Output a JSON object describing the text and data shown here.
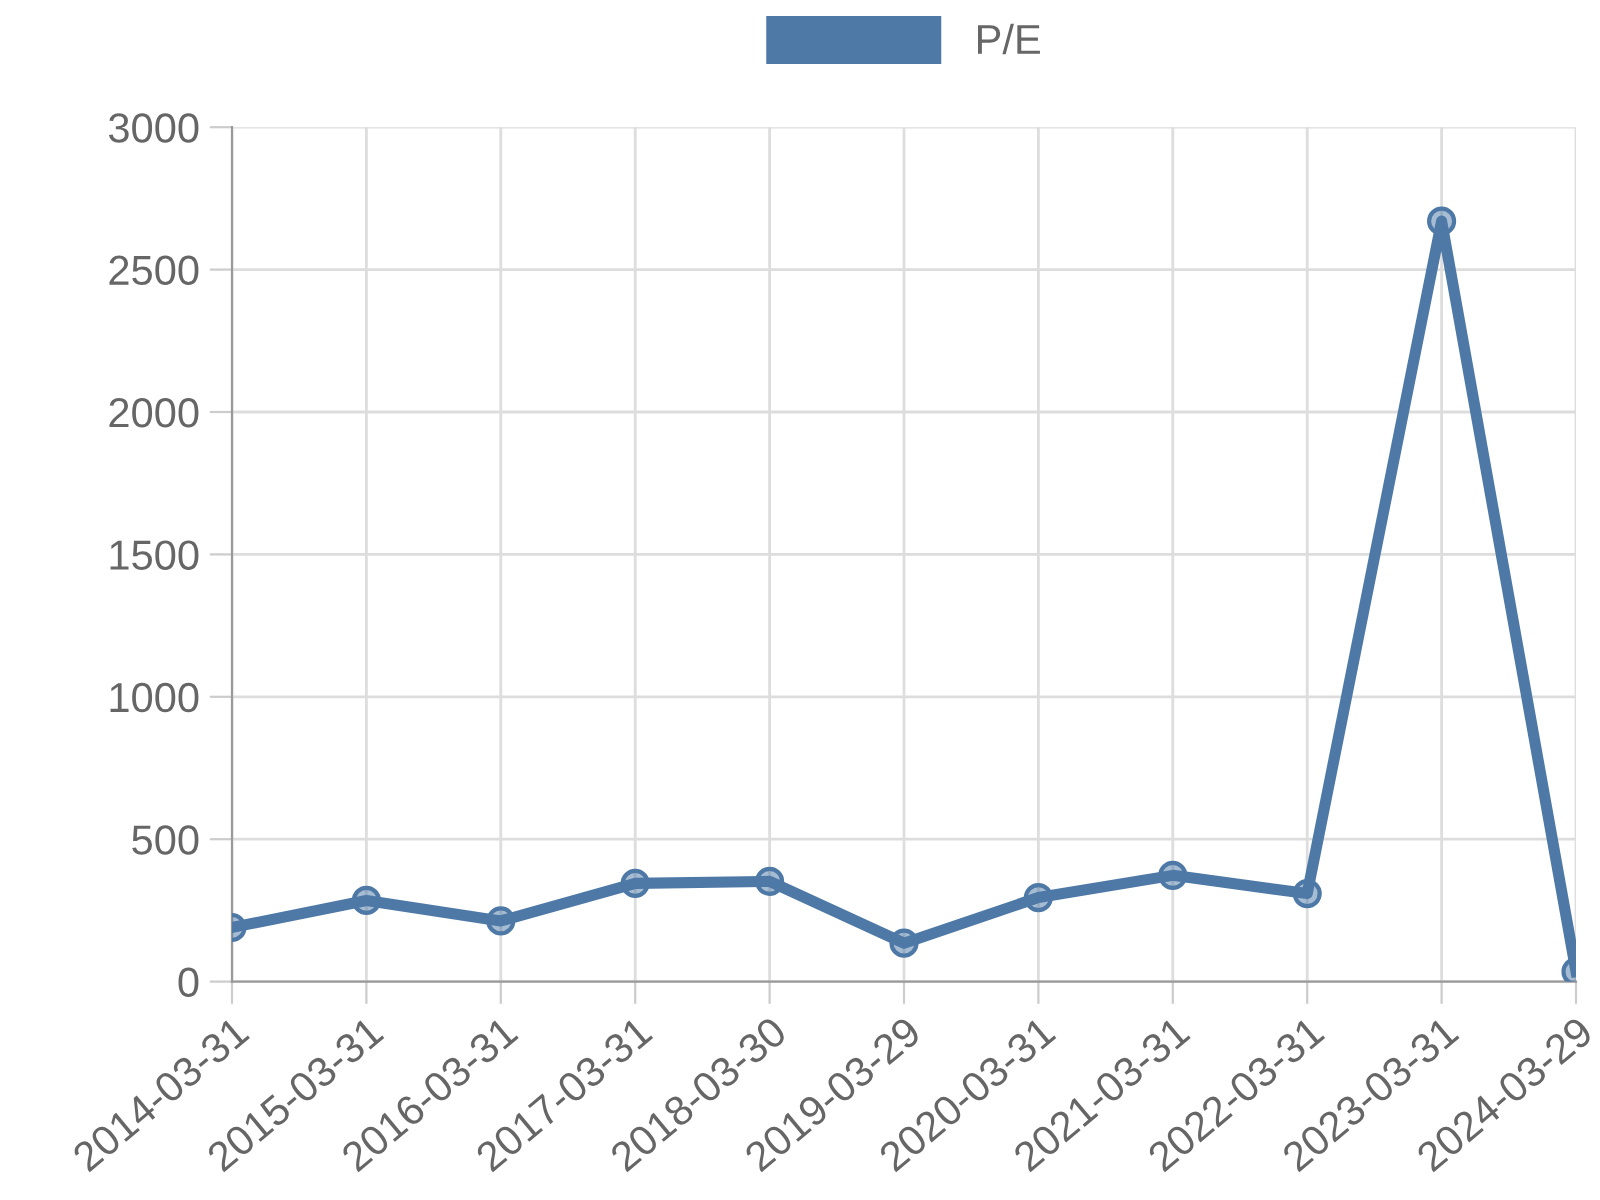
{
  "chart_data": {
    "type": "line",
    "categories": [
      "2014-03-31",
      "2015-03-31",
      "2016-03-31",
      "2017-03-31",
      "2018-03-30",
      "2019-03-29",
      "2020-03-31",
      "2021-03-31",
      "2022-03-31",
      "2023-03-31",
      "2024-03-29"
    ],
    "series": [
      {
        "name": "P/E",
        "color": "#4e79a7",
        "values": [
          190,
          285,
          213,
          345,
          352,
          135,
          295,
          373,
          309,
          2670,
          35
        ]
      }
    ],
    "ylim": [
      0,
      3000
    ],
    "yticks": [
      0,
      500,
      1000,
      1500,
      2000,
      2500,
      3000
    ],
    "grid": true,
    "legend": "top",
    "marker": "circle",
    "line_style": "solid"
  }
}
